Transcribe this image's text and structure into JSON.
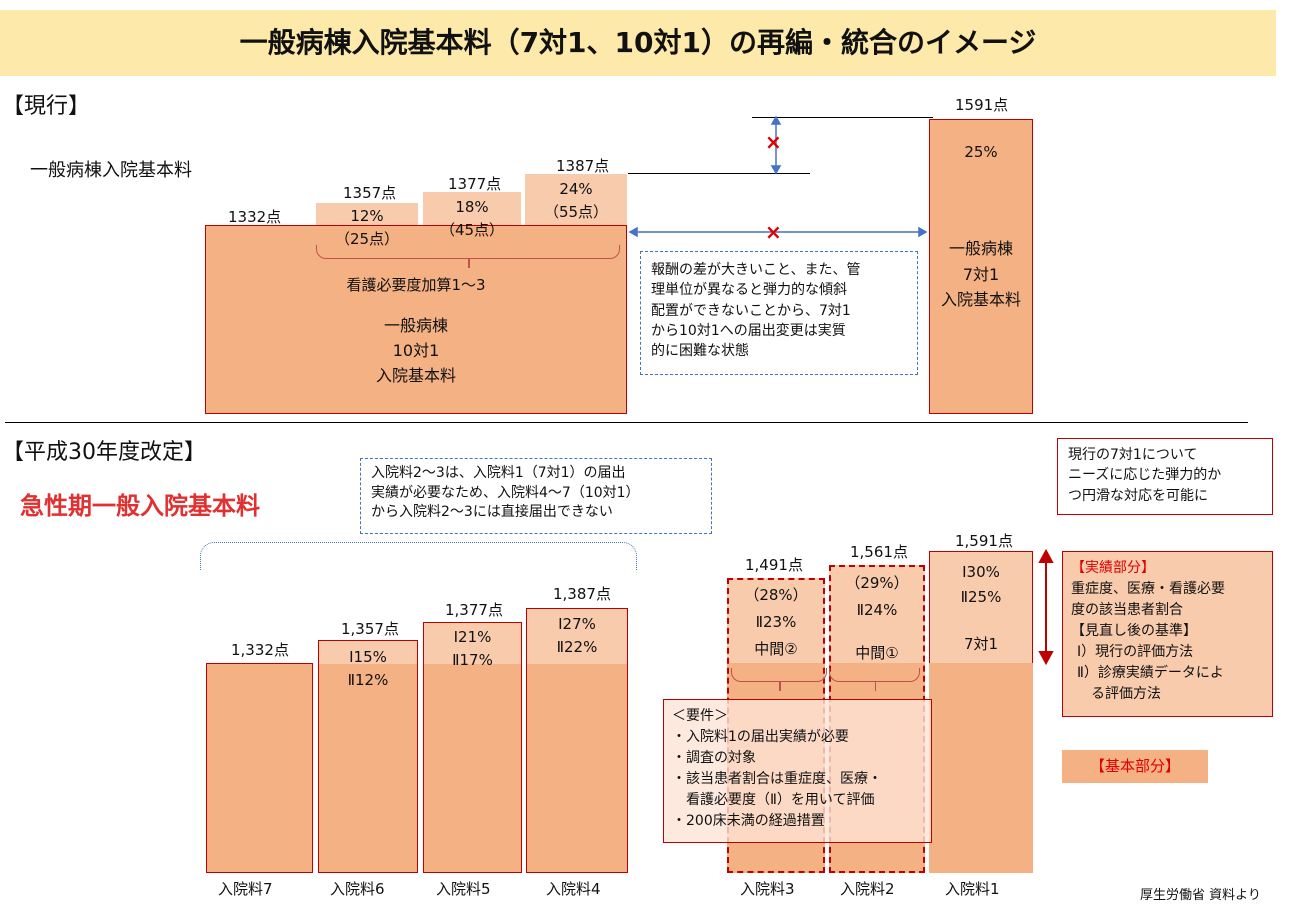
{
  "title": "一般病棟入院基本料（7対1、10対1）の再編・統合のイメージ",
  "current": {
    "heading": "【現行】",
    "row_label": "一般病棟入院基本料",
    "base_points": "1332点",
    "steps": [
      {
        "points": "1357点",
        "pct": "12%",
        "add": "（25点）"
      },
      {
        "points": "1377点",
        "pct": "18%",
        "add": "（45点）"
      },
      {
        "points": "1387点",
        "pct": "24%",
        "add": "（55点）"
      }
    ],
    "brace_label": "看護必要度加算1～3",
    "box10": [
      "一般病棟",
      "10対1",
      "入院基本料"
    ],
    "box7_points": "1591点",
    "box7_pct": "25%",
    "box7": [
      "一般病棟",
      "7対1",
      "入院基本料"
    ],
    "cross": "×",
    "note": [
      "報酬の差が大きいこと、また、管",
      "理単位が異なると弾力的な傾斜",
      "配置ができないことから、7対1",
      "から10対1への届出変更は実質",
      "的に困難な状態"
    ]
  },
  "revised": {
    "heading": "【平成30年度改定】",
    "subtitle": "急性期一般入院基本料",
    "note": [
      "入院料2～3は、入院料1（7対1）の届出",
      "実績が必要なため、入院料4～7（10対1）",
      "から入院料2～3には直接届出できない"
    ],
    "right_note": [
      "現行の7対1について",
      "ニーズに応じた弾力的か",
      "つ円滑な対応を可能に"
    ],
    "bars": [
      {
        "name": "入院料7",
        "points": "1,332点",
        "lines": []
      },
      {
        "name": "入院料6",
        "points": "1,357点",
        "lines": [
          "Ⅰ15%",
          "Ⅱ12%"
        ]
      },
      {
        "name": "入院料5",
        "points": "1,377点",
        "lines": [
          "Ⅰ21%",
          "Ⅱ17%"
        ]
      },
      {
        "name": "入院料4",
        "points": "1,387点",
        "lines": [
          "Ⅰ27%",
          "Ⅱ22%"
        ]
      },
      {
        "name": "入院料3",
        "points": "1,491点",
        "lines": [
          "（28%）",
          "Ⅱ23%",
          "中間②"
        ]
      },
      {
        "name": "入院料2",
        "points": "1,561点",
        "lines": [
          "（29%）",
          "Ⅱ24%",
          "中間①"
        ]
      },
      {
        "name": "入院料1",
        "points": "1,591点",
        "lines": [
          "Ⅰ30%",
          "Ⅱ25%",
          "7対1"
        ]
      }
    ],
    "requirements": [
      "＜要件＞",
      "・入院料1の届出実績が必要",
      "・調査の対象",
      "・該当患者割合は重症度、医療・",
      "　看護必要度（Ⅱ）を用いて評価",
      "・200床未満の経過措置"
    ],
    "performance": {
      "title": "【実績部分】",
      "lines": [
        "重症度、医療・看護必要",
        "度の該当患者割合",
        "【見直し後の基準】",
        "Ⅰ）現行の評価方法",
        "Ⅱ）診療実績データによ",
        "　る評価方法"
      ]
    },
    "basic": "【基本部分】"
  },
  "source": "厚生労働省 資料より",
  "colors": {
    "orange": "#f4b183",
    "light": "#f8cbad",
    "red": "#c00000",
    "title_bg": "#fde9a9",
    "blue": "#4472c4"
  }
}
